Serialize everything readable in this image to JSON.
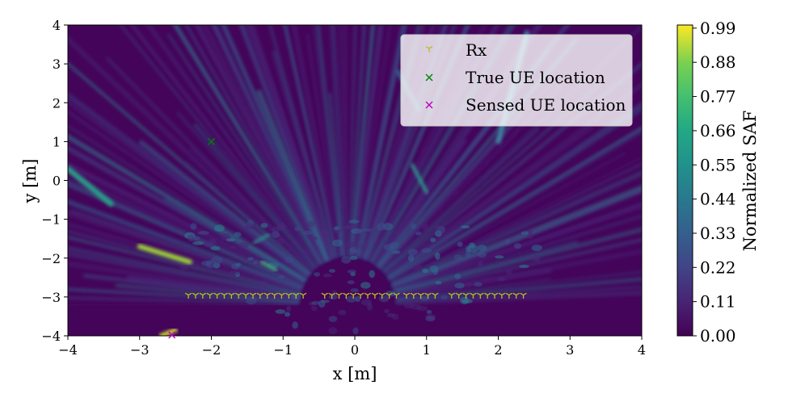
{
  "chart_data": {
    "type": "heatmap",
    "title": "",
    "xlabel": "x [m]",
    "ylabel": "y [m]",
    "xlim": [
      -4,
      4
    ],
    "ylim": [
      -4,
      4
    ],
    "xticks": [
      "−4",
      "−3",
      "−2",
      "−1",
      "0",
      "1",
      "2",
      "3",
      "4"
    ],
    "yticks": [
      "4",
      "3",
      "2",
      "1",
      "0",
      "−1",
      "−2",
      "−3",
      "−4"
    ],
    "colormap": "viridis",
    "colorbar": {
      "label": "Normalized SAF",
      "ticks": [
        "0.00",
        "0.11",
        "0.22",
        "0.33",
        "0.44",
        "0.55",
        "0.66",
        "0.77",
        "0.88",
        "0.99"
      ],
      "range": [
        0.0,
        1.0
      ]
    },
    "grid": false,
    "legend_position": "upper right",
    "legend": [
      {
        "label": "Rx",
        "marker": "tri_down",
        "color": "#bcbd22"
      },
      {
        "label": "True UE location",
        "marker": "x",
        "color": "#008000"
      },
      {
        "label": "Sensed UE location",
        "marker": "x",
        "color": "#bf00bf"
      }
    ],
    "series": [
      {
        "name": "Rx",
        "x": [
          -2.32,
          -2.22,
          -2.12,
          -2.02,
          -1.92,
          -1.82,
          -1.72,
          -1.62,
          -1.52,
          -1.42,
          -1.32,
          -1.22,
          -1.12,
          -1.02,
          -0.92,
          -0.82,
          -0.72,
          -0.42,
          -0.32,
          -0.22,
          -0.12,
          -0.02,
          0.08,
          0.18,
          0.28,
          0.38,
          0.48,
          0.58,
          0.72,
          0.82,
          0.92,
          1.02,
          1.12,
          1.35,
          1.45,
          1.55,
          1.65,
          1.75,
          1.85,
          1.95,
          2.05,
          2.15,
          2.25,
          2.35
        ],
        "y": -2.95
      },
      {
        "name": "True UE location",
        "x": [
          -2.0
        ],
        "y": [
          1.0
        ]
      },
      {
        "name": "Sensed UE location",
        "x": [
          -2.55
        ],
        "y": [
          -3.98
        ]
      }
    ]
  }
}
